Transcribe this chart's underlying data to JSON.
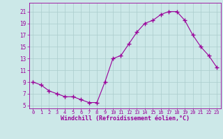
{
  "x": [
    0,
    1,
    2,
    3,
    4,
    5,
    6,
    7,
    8,
    9,
    10,
    11,
    12,
    13,
    14,
    15,
    16,
    17,
    18,
    19,
    20,
    21,
    22,
    23
  ],
  "y": [
    9,
    8.5,
    7.5,
    7,
    6.5,
    6.5,
    6,
    5.5,
    5.5,
    9,
    13,
    13.5,
    15.5,
    17.5,
    19,
    19.5,
    20.5,
    21,
    21,
    19.5,
    17,
    15,
    13.5,
    11.5
  ],
  "line_color": "#990099",
  "marker": "+",
  "marker_size": 4,
  "bg_color": "#cce8e8",
  "grid_color": "#aacccc",
  "xlabel": "Windchill (Refroidissement éolien,°C)",
  "xlabel_color": "#990099",
  "ylabel_ticks": [
    5,
    7,
    9,
    11,
    13,
    15,
    17,
    19,
    21
  ],
  "ytick_color": "#990099",
  "xtick_color": "#990099",
  "xtick_labels": [
    "0",
    "1",
    "2",
    "3",
    "4",
    "5",
    "6",
    "7",
    "8",
    "9",
    "10",
    "11",
    "12",
    "13",
    "14",
    "15",
    "16",
    "17",
    "18",
    "19",
    "20",
    "21",
    "22",
    "23"
  ],
  "ylim": [
    4.5,
    22.5
  ],
  "xlim": [
    -0.5,
    23.5
  ],
  "spine_color": "#990099",
  "figsize": [
    3.2,
    2.0
  ],
  "dpi": 100
}
